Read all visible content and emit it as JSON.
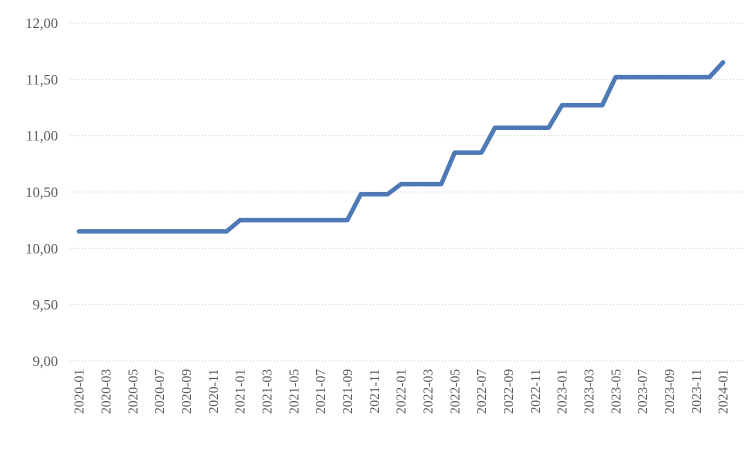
{
  "chart": {
    "accent_color": "#4E79B7",
    "grid_color": "#c9c9c9",
    "label_color": "#595959",
    "background": "#ffffff"
  },
  "chart_data": {
    "type": "line",
    "title": "",
    "xlabel": "",
    "ylabel": "",
    "legend": "none",
    "grid": "horizontal-dotted",
    "ylim": [
      9.0,
      12.0
    ],
    "y_tick_step": 0.5,
    "y_tick_labels": [
      "12,00",
      "11,50",
      "11,00",
      "10,50",
      "10,00",
      "9,50",
      "9,00"
    ],
    "x_tick_labels": [
      "2020-01",
      "2020-03",
      "2020-05",
      "2020-07",
      "2020-09",
      "2020-11",
      "2021-01",
      "2021-03",
      "2021-05",
      "2021-07",
      "2021-09",
      "2021-11",
      "2022-01",
      "2022-03",
      "2022-05",
      "2022-07",
      "2022-09",
      "2022-11",
      "2023-01",
      "2023-03",
      "2023-05",
      "2023-07",
      "2023-09",
      "2023-11",
      "2024-01"
    ],
    "x": [
      "2020-01",
      "2020-02",
      "2020-03",
      "2020-04",
      "2020-05",
      "2020-06",
      "2020-07",
      "2020-08",
      "2020-09",
      "2020-10",
      "2020-11",
      "2020-12",
      "2021-01",
      "2021-02",
      "2021-03",
      "2021-04",
      "2021-05",
      "2021-06",
      "2021-07",
      "2021-08",
      "2021-09",
      "2021-10",
      "2021-11",
      "2021-12",
      "2022-01",
      "2022-02",
      "2022-03",
      "2022-04",
      "2022-05",
      "2022-06",
      "2022-07",
      "2022-08",
      "2022-09",
      "2022-10",
      "2022-11",
      "2022-12",
      "2023-01",
      "2023-02",
      "2023-03",
      "2023-04",
      "2023-05",
      "2023-06",
      "2023-07",
      "2023-08",
      "2023-09",
      "2023-10",
      "2023-11",
      "2023-12",
      "2024-01"
    ],
    "series": [
      {
        "name": "value",
        "color": "#4E79B7",
        "values": [
          10.15,
          10.15,
          10.15,
          10.15,
          10.15,
          10.15,
          10.15,
          10.15,
          10.15,
          10.15,
          10.15,
          10.15,
          10.25,
          10.25,
          10.25,
          10.25,
          10.25,
          10.25,
          10.25,
          10.25,
          10.25,
          10.48,
          10.48,
          10.48,
          10.57,
          10.57,
          10.57,
          10.57,
          10.85,
          10.85,
          10.85,
          11.07,
          11.07,
          11.07,
          11.07,
          11.07,
          11.27,
          11.27,
          11.27,
          11.27,
          11.52,
          11.52,
          11.52,
          11.52,
          11.52,
          11.52,
          11.52,
          11.52,
          11.65
        ]
      }
    ]
  }
}
